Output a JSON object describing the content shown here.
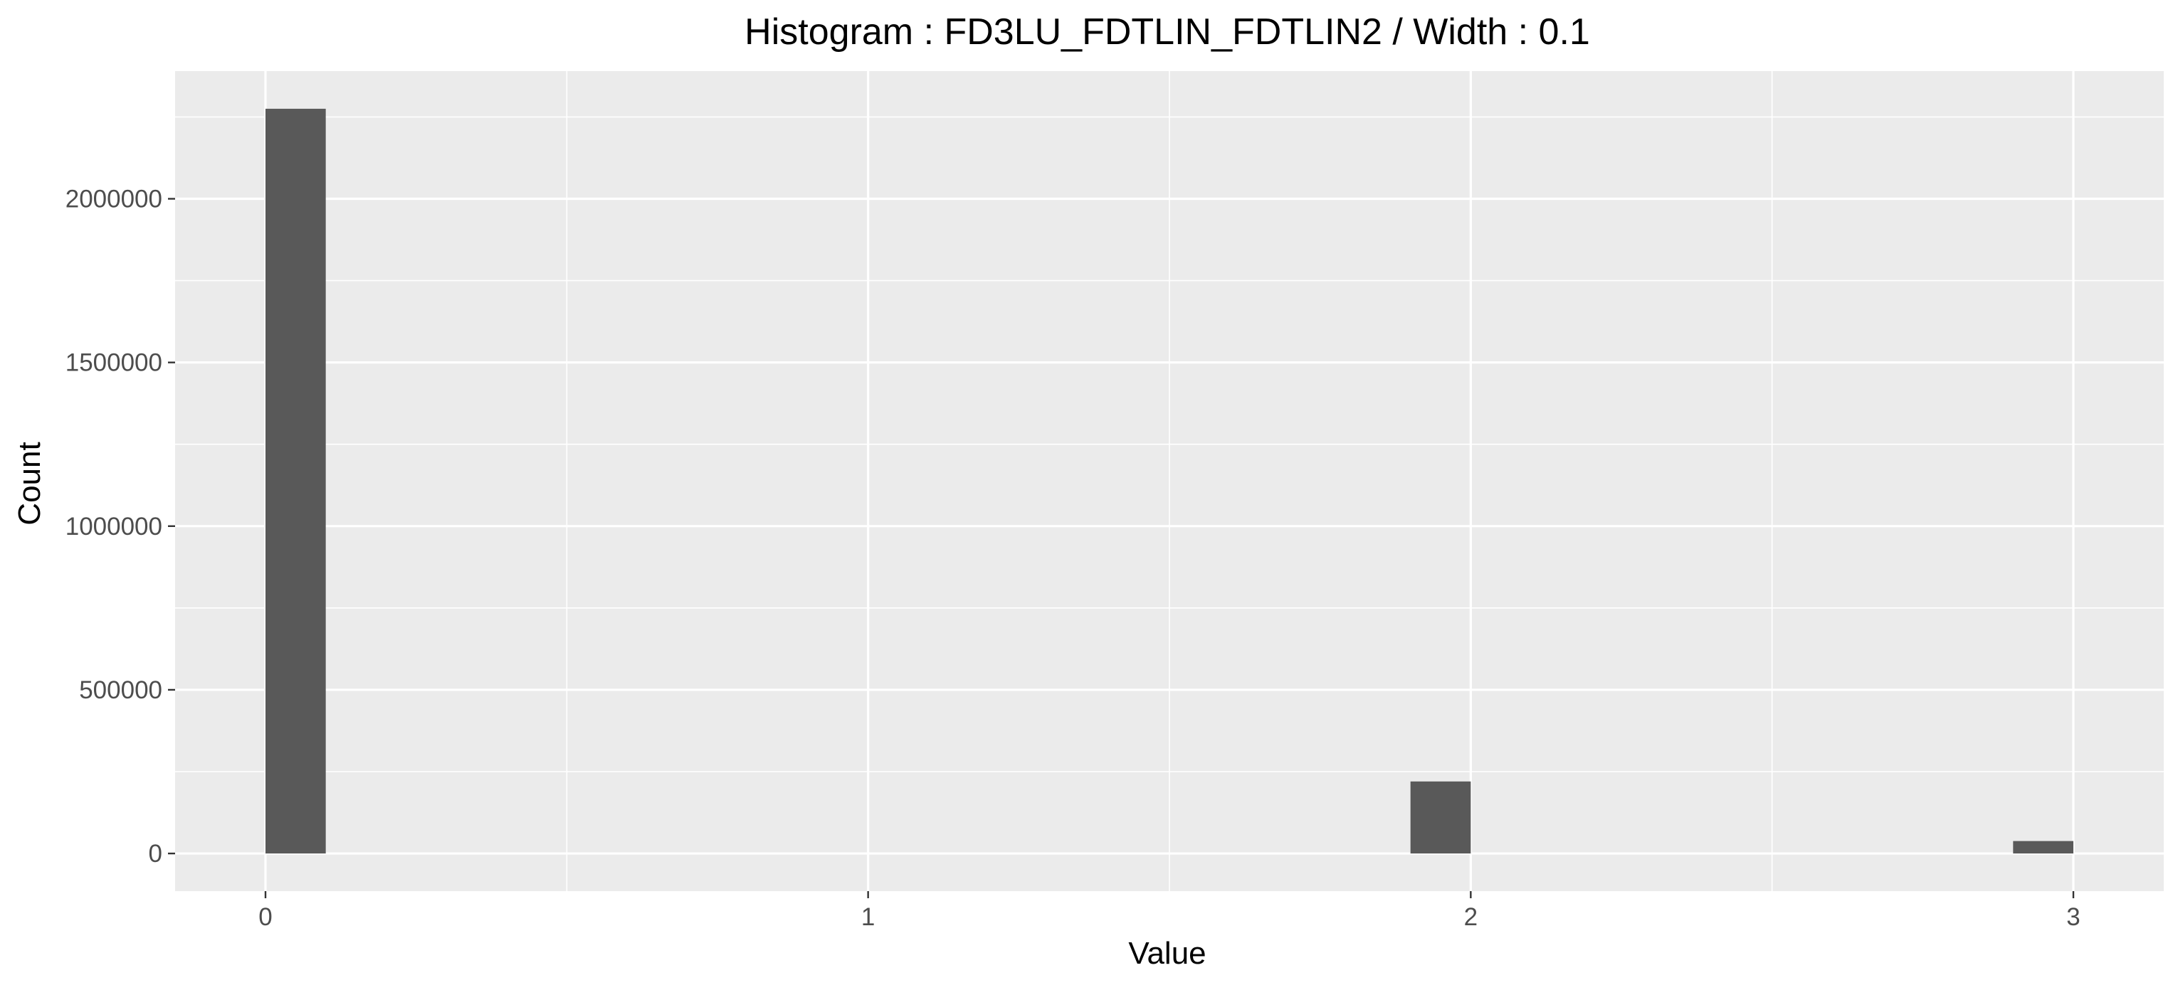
{
  "chart_data": {
    "type": "bar",
    "title": "Histogram : FD3LU_FDTLIN_FDTLIN2 / Width : 0.1",
    "xlabel": "Value",
    "ylabel": "Count",
    "bin_width": 0.1,
    "xlim": [
      -0.15,
      3.15
    ],
    "ylim": [
      -115000,
      2390000
    ],
    "x_ticks": [
      0,
      1,
      2,
      3
    ],
    "y_ticks": [
      0,
      500000,
      1000000,
      1500000,
      2000000
    ],
    "x_minor_ticks": [
      0.5,
      1.5,
      2.5
    ],
    "y_minor_ticks": [
      250000,
      750000,
      1250000,
      1750000,
      2250000
    ],
    "bins": [
      {
        "start": 0.0,
        "end": 0.1,
        "count": 2275000
      },
      {
        "start": 1.9,
        "end": 2.0,
        "count": 220000
      },
      {
        "start": 2.9,
        "end": 3.0,
        "count": 38000
      }
    ],
    "grid": true,
    "colors": {
      "panel_background": "#ebebeb",
      "grid": "#ffffff",
      "bar_fill": "#595959",
      "tick_text": "#4d4d4d",
      "title_text": "#000000"
    }
  }
}
